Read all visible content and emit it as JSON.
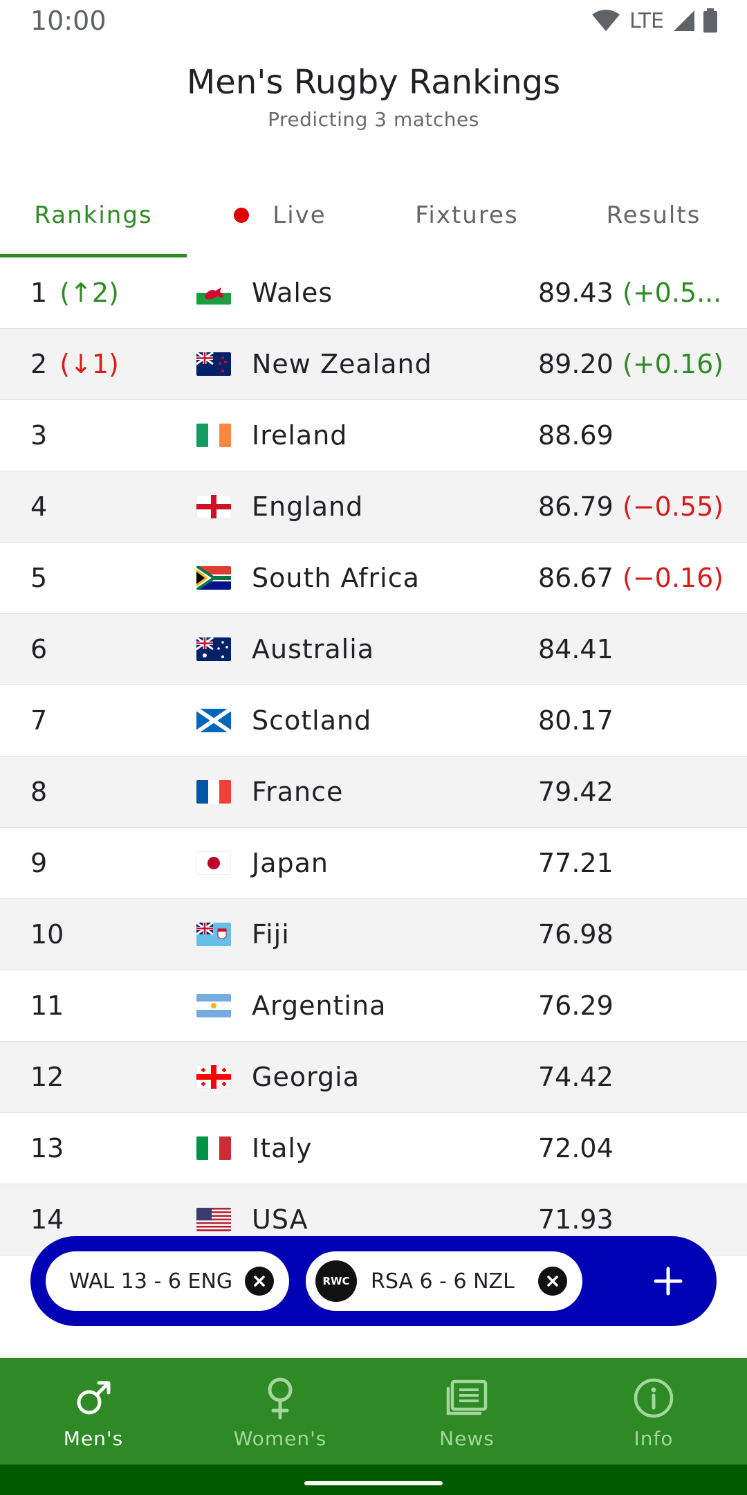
{
  "status": {
    "time": "10:00",
    "network": "LTE"
  },
  "header": {
    "title": "Men's Rugby Rankings",
    "subtitle": "Predicting 3 matches"
  },
  "tabs": [
    {
      "label": "Rankings",
      "active": true
    },
    {
      "label": "Live",
      "active": false
    },
    {
      "label": "Fixtures",
      "active": false
    },
    {
      "label": "Results",
      "active": false
    }
  ],
  "rankings": [
    {
      "rank": "1",
      "move": "(↑2)",
      "move_dir": "up",
      "team": "Wales",
      "flag": "wales",
      "points": "89.43",
      "change": "(+0.5...",
      "change_dir": "up"
    },
    {
      "rank": "2",
      "move": "(↓1)",
      "move_dir": "down",
      "team": "New Zealand",
      "flag": "new-zealand",
      "points": "89.20",
      "change": "(+0.16)",
      "change_dir": "up"
    },
    {
      "rank": "3",
      "move": "",
      "move_dir": "",
      "team": "Ireland",
      "flag": "ireland",
      "points": "88.69",
      "change": "",
      "change_dir": ""
    },
    {
      "rank": "4",
      "move": "",
      "move_dir": "",
      "team": "England",
      "flag": "england",
      "points": "86.79",
      "change": "(−0.55)",
      "change_dir": "down"
    },
    {
      "rank": "5",
      "move": "",
      "move_dir": "",
      "team": "South Africa",
      "flag": "south-africa",
      "points": "86.67",
      "change": "(−0.16)",
      "change_dir": "down"
    },
    {
      "rank": "6",
      "move": "",
      "move_dir": "",
      "team": "Australia",
      "flag": "australia",
      "points": "84.41",
      "change": "",
      "change_dir": ""
    },
    {
      "rank": "7",
      "move": "",
      "move_dir": "",
      "team": "Scotland",
      "flag": "scotland",
      "points": "80.17",
      "change": "",
      "change_dir": ""
    },
    {
      "rank": "8",
      "move": "",
      "move_dir": "",
      "team": "France",
      "flag": "france",
      "points": "79.42",
      "change": "",
      "change_dir": ""
    },
    {
      "rank": "9",
      "move": "",
      "move_dir": "",
      "team": "Japan",
      "flag": "japan",
      "points": "77.21",
      "change": "",
      "change_dir": ""
    },
    {
      "rank": "10",
      "move": "",
      "move_dir": "",
      "team": "Fiji",
      "flag": "fiji",
      "points": "76.98",
      "change": "",
      "change_dir": ""
    },
    {
      "rank": "11",
      "move": "",
      "move_dir": "",
      "team": "Argentina",
      "flag": "argentina",
      "points": "76.29",
      "change": "",
      "change_dir": ""
    },
    {
      "rank": "12",
      "move": "",
      "move_dir": "",
      "team": "Georgia",
      "flag": "georgia",
      "points": "74.42",
      "change": "",
      "change_dir": ""
    },
    {
      "rank": "13",
      "move": "",
      "move_dir": "",
      "team": "Italy",
      "flag": "italy",
      "points": "72.04",
      "change": "",
      "change_dir": ""
    },
    {
      "rank": "14",
      "move": "",
      "move_dir": "",
      "team": "USA",
      "flag": "usa",
      "points": "71.93",
      "change": "",
      "change_dir": ""
    }
  ],
  "predictions": [
    {
      "label": "WAL 13 - 6 ENG",
      "logo": ""
    },
    {
      "label": "RSA 6 - 6 NZL",
      "logo": "RWC"
    }
  ],
  "bottom_nav": [
    {
      "label": "Men's",
      "icon": "male-icon",
      "active": true
    },
    {
      "label": "Women's",
      "icon": "female-icon",
      "active": false
    },
    {
      "label": "News",
      "icon": "news-icon",
      "active": false
    },
    {
      "label": "Info",
      "icon": "info-icon",
      "active": false
    }
  ],
  "colors": {
    "accent": "#2e8a24",
    "prediction_bar": "#0000b5",
    "negative": "#d81b1b"
  }
}
